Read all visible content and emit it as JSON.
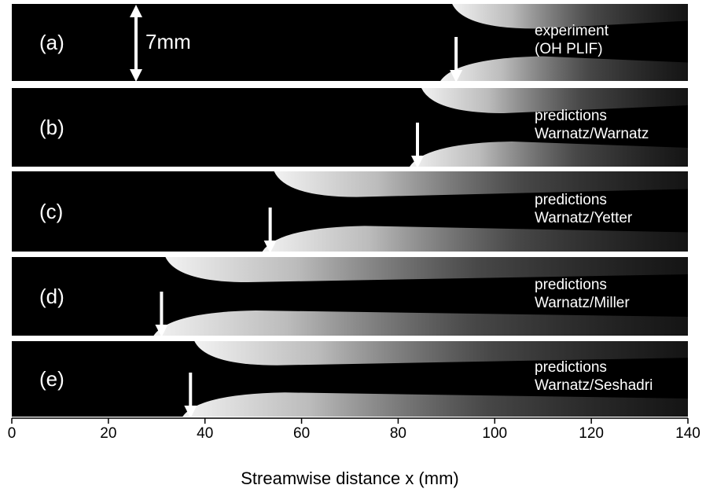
{
  "chart_data": {
    "type": "image-strip",
    "xlabel": "Streamwise distance x (mm)",
    "xlim": [
      0,
      140
    ],
    "xticks": [
      0,
      20,
      40,
      60,
      80,
      100,
      120,
      140
    ],
    "scale_label": "7mm",
    "panels": [
      {
        "label": "(a)",
        "caption": [
          "experiment",
          "(OH PLIF)"
        ],
        "arrow": 92
      },
      {
        "label": "(b)",
        "caption": [
          "predictions",
          "Warnatz/Warnatz"
        ],
        "arrow": 84
      },
      {
        "label": "(c)",
        "caption": [
          "predictions",
          "Warnatz/Yetter"
        ],
        "arrow": 53.5
      },
      {
        "label": "(d)",
        "caption": [
          "predictions",
          "Warnatz/Miller"
        ],
        "arrow": 31
      },
      {
        "label": "(e)",
        "caption": [
          "predictions",
          "Warnatz/Seshadri"
        ],
        "arrow": 37
      }
    ]
  }
}
